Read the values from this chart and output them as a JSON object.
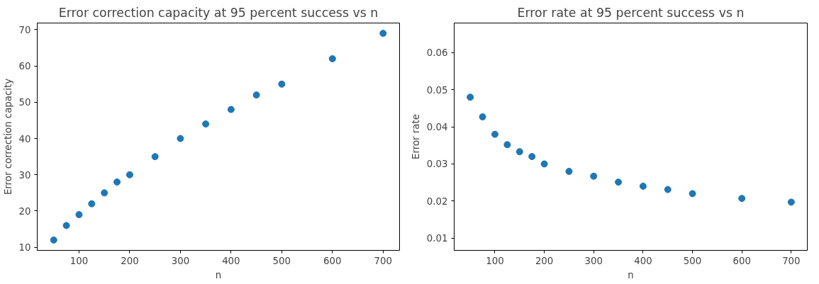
{
  "chart_data": [
    {
      "type": "scatter",
      "title": "Error correction capacity at 95 percent success vs n",
      "xlabel": "n",
      "ylabel": "Error correction capacity",
      "x": [
        50,
        75,
        100,
        125,
        150,
        175,
        200,
        250,
        300,
        350,
        400,
        450,
        500,
        600,
        700
      ],
      "series": [
        {
          "color": "#1f77b4",
          "values": [
            12,
            16,
            19,
            22,
            25,
            28,
            30,
            35,
            40,
            44,
            48,
            52,
            55,
            62,
            69
          ]
        }
      ],
      "xlim": [
        17.5,
        732.5
      ],
      "xticks": [
        100,
        200,
        300,
        400,
        500,
        600,
        700
      ],
      "ylim": [
        9.15,
        71.85
      ],
      "yticks": [
        10,
        20,
        30,
        40,
        50,
        60,
        70
      ],
      "marker": "circle",
      "grid": false
    },
    {
      "type": "scatter",
      "title": "Error rate at 95 percent success vs n",
      "xlabel": "n",
      "ylabel": "Error rate",
      "x": [
        50,
        75,
        100,
        125,
        150,
        175,
        200,
        250,
        300,
        350,
        400,
        450,
        500,
        600,
        700
      ],
      "series": [
        {
          "color": "#1f77b4",
          "values": [
            0.048,
            0.0427,
            0.038,
            0.0352,
            0.0333,
            0.032,
            0.03,
            0.028,
            0.0267,
            0.0251,
            0.024,
            0.0231,
            0.022,
            0.0207,
            0.0197
          ]
        }
      ],
      "xlim": [
        17.5,
        732.5
      ],
      "xticks": [
        100,
        200,
        300,
        400,
        500,
        600,
        700
      ],
      "ylim": [
        0.0067,
        0.068
      ],
      "yticks": [
        0.01,
        0.02,
        0.03,
        0.04,
        0.05,
        0.06
      ],
      "marker": "circle",
      "grid": false
    }
  ]
}
